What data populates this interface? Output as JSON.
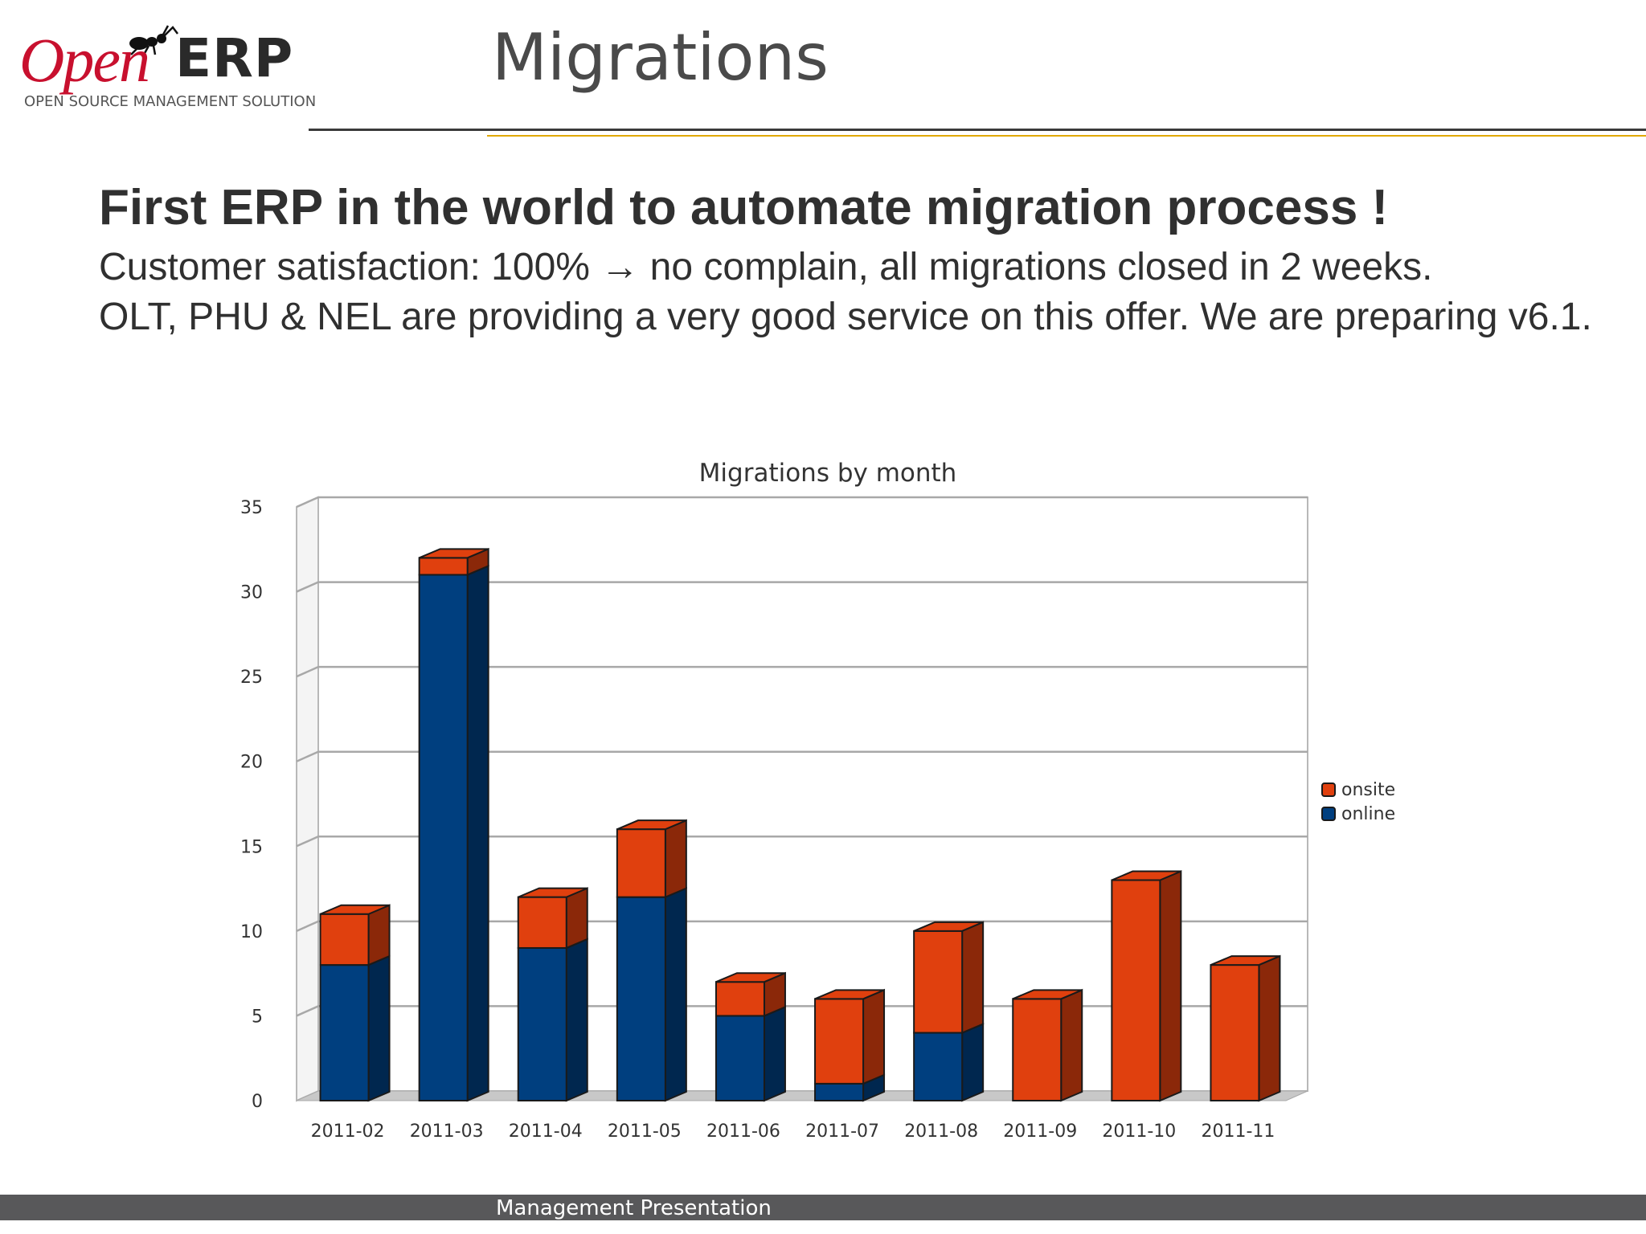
{
  "header": {
    "logo": {
      "brand_open": "Open",
      "brand_erp": "ERP",
      "tagline": "OPEN SOURCE MANAGEMENT SOLUTION"
    },
    "title": "Migrations"
  },
  "content": {
    "headline": "First ERP in the world to automate migration process !",
    "paragraphs": [
      "Customer satisfaction: 100% → no complain, all migrations closed in 2 weeks.",
      "OLT, PHU & NEL are providing a very good service on this offer. We are preparing v6.1."
    ]
  },
  "chart_data": {
    "type": "bar",
    "stacked": true,
    "style": "3d",
    "title": "Migrations by month",
    "xlabel": "",
    "ylabel": "",
    "categories": [
      "2011-02",
      "2011-03",
      "2011-04",
      "2011-05",
      "2011-06",
      "2011-07",
      "2011-08",
      "2011-09",
      "2011-10",
      "2011-11"
    ],
    "series": [
      {
        "name": "online",
        "color": "#003f7f",
        "values": [
          8,
          31,
          9,
          12,
          5,
          1,
          4,
          0,
          0,
          0
        ]
      },
      {
        "name": "onsite",
        "color": "#e0400e",
        "values": [
          3,
          1,
          3,
          4,
          2,
          5,
          6,
          6,
          13,
          8
        ]
      }
    ],
    "legend_order": [
      "onsite",
      "online"
    ],
    "ylim": [
      0,
      35
    ],
    "yticks": [
      0,
      5,
      10,
      15,
      20,
      25,
      30,
      35
    ],
    "grid": true,
    "legend_position": "right"
  },
  "footer": {
    "label": "Management Presentation"
  }
}
